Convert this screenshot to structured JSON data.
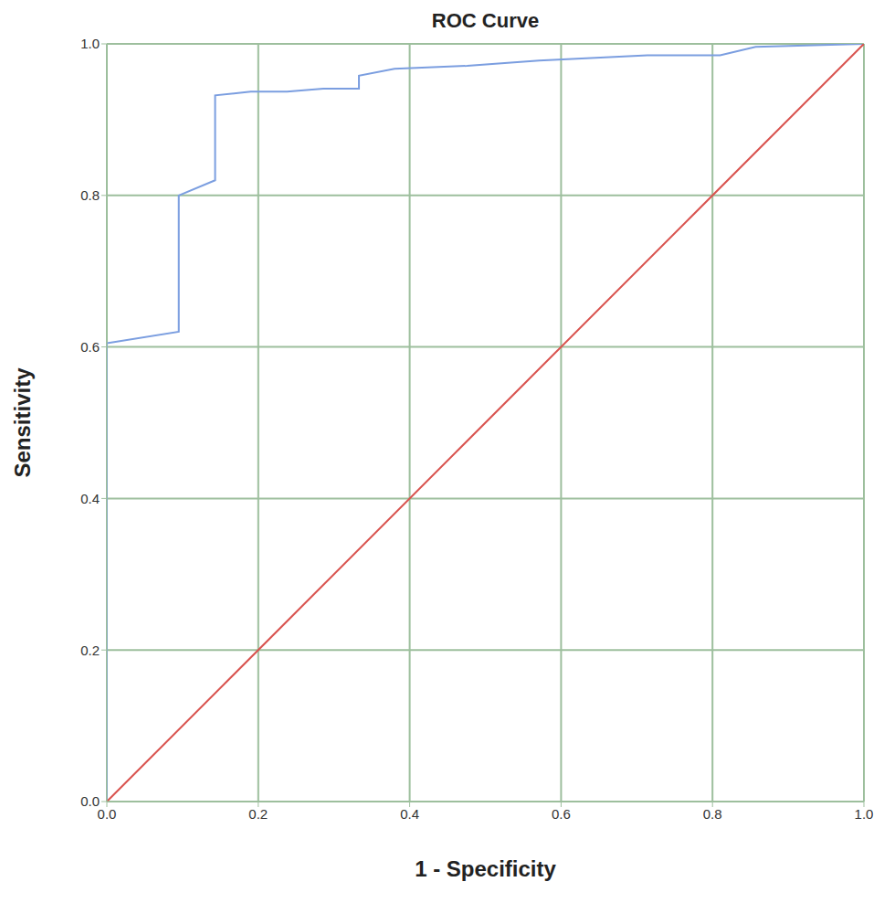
{
  "chart_data": {
    "type": "line",
    "title": "ROC Curve",
    "x_label": "1 - Specificity",
    "y_label": "Sensitivity",
    "xlim": [
      0,
      1
    ],
    "ylim": [
      0,
      1
    ],
    "xticks": [
      {
        "value": 0,
        "label": "0.0"
      },
      {
        "value": 0.2,
        "label": "0.2"
      },
      {
        "value": 0.4,
        "label": "0.4"
      },
      {
        "value": 0.6,
        "label": "0.6"
      },
      {
        "value": 0.8,
        "label": "0.8"
      },
      {
        "value": 1,
        "label": "1.0"
      }
    ],
    "yticks": [
      {
        "value": 0,
        "label": "0.0"
      },
      {
        "value": 0.2,
        "label": "0.2"
      },
      {
        "value": 0.4,
        "label": "0.4"
      },
      {
        "value": 0.6,
        "label": "0.6"
      },
      {
        "value": 0.8,
        "label": "0.8"
      },
      {
        "value": 1,
        "label": "1.0"
      }
    ],
    "grid": true,
    "series": [
      {
        "color": "#7b9ee0",
        "x": [
          0,
          0,
          0.095,
          0.095,
          0.143,
          0.143,
          0.19,
          0.238,
          0.286,
          0.333,
          0.333,
          0.38,
          0.476,
          0.571,
          0.714,
          0.81,
          0.857,
          1
        ],
        "values": [
          0,
          0.605,
          0.62,
          0.8,
          0.82,
          0.932,
          0.937,
          0.937,
          0.941,
          0.941,
          0.958,
          0.967,
          0.971,
          0.978,
          0.985,
          0.985,
          0.996,
          1
        ]
      },
      {
        "color": "#d9534f",
        "x": [
          0,
          1
        ],
        "values": [
          0,
          1
        ]
      }
    ]
  }
}
